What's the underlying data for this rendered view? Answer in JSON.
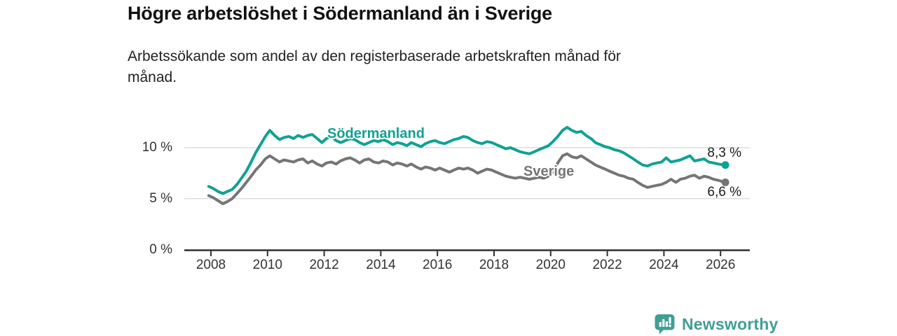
{
  "header": {
    "title": "Högre arbetslöshet i Södermanland än i Sverige",
    "subtitle_line1": "Arbetssökande som andel av den registerbaserade arbetskraften månad för",
    "subtitle_line2": "månad."
  },
  "footer": {
    "brand": "Newsworthy"
  },
  "colors": {
    "accent": "#0FA294",
    "series_gray": "#757575",
    "grid": "#d8d8d8",
    "axis": "#2f2f2f",
    "tick_text": "#333333",
    "logo": "#419E97"
  },
  "chart_data": {
    "type": "line",
    "title": "Högre arbetslöshet i Södermanland än i Sverige",
    "subtitle": "Arbetssökande som andel av den registerbaserade arbetskraften månad för månad.",
    "xlabel": "",
    "ylabel": "",
    "xlim": [
      2007.0,
      2027.2
    ],
    "ylim": [
      0,
      13
    ],
    "grid": "horizontal",
    "legend": "inline-labels",
    "x_ticks": [
      2008,
      2010,
      2012,
      2014,
      2016,
      2018,
      2020,
      2022,
      2024,
      2026
    ],
    "y_ticks": [
      {
        "value": 10,
        "label": "10 %"
      },
      {
        "value": 5,
        "label": "5 %"
      },
      {
        "value": 0,
        "label": "0 %"
      }
    ],
    "series": [
      {
        "name": "Södermanland",
        "color": "#0FA294",
        "end_label": "8,3 %",
        "end_value": 8.3,
        "points": [
          [
            2007.92,
            6.2
          ],
          [
            2008.08,
            6.0
          ],
          [
            2008.25,
            5.7
          ],
          [
            2008.42,
            5.5
          ],
          [
            2008.58,
            5.7
          ],
          [
            2008.75,
            5.9
          ],
          [
            2008.92,
            6.4
          ],
          [
            2009.08,
            7.0
          ],
          [
            2009.25,
            7.7
          ],
          [
            2009.42,
            8.6
          ],
          [
            2009.58,
            9.5
          ],
          [
            2009.75,
            10.3
          ],
          [
            2009.92,
            11.1
          ],
          [
            2010.08,
            11.7
          ],
          [
            2010.25,
            11.2
          ],
          [
            2010.42,
            10.8
          ],
          [
            2010.58,
            11.0
          ],
          [
            2010.75,
            11.1
          ],
          [
            2010.92,
            10.9
          ],
          [
            2011.08,
            11.2
          ],
          [
            2011.25,
            11.0
          ],
          [
            2011.42,
            11.2
          ],
          [
            2011.58,
            11.3
          ],
          [
            2011.75,
            10.9
          ],
          [
            2011.92,
            10.5
          ],
          [
            2012.08,
            10.9
          ],
          [
            2012.25,
            11.1
          ],
          [
            2012.42,
            10.7
          ],
          [
            2012.58,
            10.5
          ],
          [
            2012.75,
            10.7
          ],
          [
            2012.92,
            10.9
          ],
          [
            2013.08,
            10.8
          ],
          [
            2013.25,
            10.5
          ],
          [
            2013.42,
            10.3
          ],
          [
            2013.58,
            10.5
          ],
          [
            2013.75,
            10.7
          ],
          [
            2013.92,
            10.6
          ],
          [
            2014.08,
            10.8
          ],
          [
            2014.25,
            10.6
          ],
          [
            2014.42,
            10.3
          ],
          [
            2014.58,
            10.5
          ],
          [
            2014.75,
            10.4
          ],
          [
            2014.92,
            10.2
          ],
          [
            2015.08,
            10.5
          ],
          [
            2015.25,
            10.3
          ],
          [
            2015.42,
            10.1
          ],
          [
            2015.58,
            10.4
          ],
          [
            2015.75,
            10.6
          ],
          [
            2015.92,
            10.7
          ],
          [
            2016.08,
            10.5
          ],
          [
            2016.25,
            10.4
          ],
          [
            2016.42,
            10.6
          ],
          [
            2016.58,
            10.8
          ],
          [
            2016.75,
            10.9
          ],
          [
            2016.92,
            11.1
          ],
          [
            2017.08,
            11.0
          ],
          [
            2017.25,
            10.7
          ],
          [
            2017.42,
            10.5
          ],
          [
            2017.58,
            10.4
          ],
          [
            2017.75,
            10.6
          ],
          [
            2017.92,
            10.5
          ],
          [
            2018.08,
            10.3
          ],
          [
            2018.25,
            10.1
          ],
          [
            2018.42,
            9.9
          ],
          [
            2018.58,
            10.0
          ],
          [
            2018.75,
            9.8
          ],
          [
            2018.92,
            9.6
          ],
          [
            2019.08,
            9.5
          ],
          [
            2019.25,
            9.4
          ],
          [
            2019.42,
            9.6
          ],
          [
            2019.58,
            9.8
          ],
          [
            2019.75,
            10.0
          ],
          [
            2019.92,
            10.2
          ],
          [
            2020.08,
            10.6
          ],
          [
            2020.25,
            11.1
          ],
          [
            2020.42,
            11.7
          ],
          [
            2020.58,
            12.0
          ],
          [
            2020.75,
            11.7
          ],
          [
            2020.92,
            11.5
          ],
          [
            2021.08,
            11.6
          ],
          [
            2021.25,
            11.2
          ],
          [
            2021.42,
            10.9
          ],
          [
            2021.58,
            10.5
          ],
          [
            2021.75,
            10.3
          ],
          [
            2021.92,
            10.1
          ],
          [
            2022.08,
            10.0
          ],
          [
            2022.25,
            9.8
          ],
          [
            2022.42,
            9.7
          ],
          [
            2022.58,
            9.5
          ],
          [
            2022.75,
            9.2
          ],
          [
            2022.92,
            8.9
          ],
          [
            2023.08,
            8.6
          ],
          [
            2023.25,
            8.3
          ],
          [
            2023.42,
            8.2
          ],
          [
            2023.58,
            8.4
          ],
          [
            2023.75,
            8.5
          ],
          [
            2023.92,
            8.6
          ],
          [
            2024.08,
            9.0
          ],
          [
            2024.25,
            8.6
          ],
          [
            2024.42,
            8.7
          ],
          [
            2024.58,
            8.8
          ],
          [
            2024.75,
            9.0
          ],
          [
            2024.92,
            9.2
          ],
          [
            2025.08,
            8.7
          ],
          [
            2025.25,
            8.8
          ],
          [
            2025.42,
            8.9
          ],
          [
            2025.58,
            8.6
          ],
          [
            2025.75,
            8.5
          ],
          [
            2025.92,
            8.4
          ],
          [
            2026.17,
            8.3
          ]
        ]
      },
      {
        "name": "Sverige",
        "color": "#757575",
        "end_label": "6,6 %",
        "end_value": 6.6,
        "points": [
          [
            2007.92,
            5.3
          ],
          [
            2008.08,
            5.1
          ],
          [
            2008.25,
            4.8
          ],
          [
            2008.42,
            4.5
          ],
          [
            2008.58,
            4.7
          ],
          [
            2008.75,
            5.0
          ],
          [
            2008.92,
            5.5
          ],
          [
            2009.08,
            6.0
          ],
          [
            2009.25,
            6.6
          ],
          [
            2009.42,
            7.2
          ],
          [
            2009.58,
            7.8
          ],
          [
            2009.75,
            8.3
          ],
          [
            2009.92,
            8.9
          ],
          [
            2010.08,
            9.2
          ],
          [
            2010.25,
            8.9
          ],
          [
            2010.42,
            8.6
          ],
          [
            2010.58,
            8.8
          ],
          [
            2010.75,
            8.7
          ],
          [
            2010.92,
            8.6
          ],
          [
            2011.08,
            8.8
          ],
          [
            2011.25,
            8.9
          ],
          [
            2011.42,
            8.5
          ],
          [
            2011.58,
            8.7
          ],
          [
            2011.75,
            8.4
          ],
          [
            2011.92,
            8.2
          ],
          [
            2012.08,
            8.5
          ],
          [
            2012.25,
            8.6
          ],
          [
            2012.42,
            8.4
          ],
          [
            2012.58,
            8.7
          ],
          [
            2012.75,
            8.9
          ],
          [
            2012.92,
            9.0
          ],
          [
            2013.08,
            8.8
          ],
          [
            2013.25,
            8.5
          ],
          [
            2013.42,
            8.8
          ],
          [
            2013.58,
            8.9
          ],
          [
            2013.75,
            8.6
          ],
          [
            2013.92,
            8.5
          ],
          [
            2014.08,
            8.7
          ],
          [
            2014.25,
            8.6
          ],
          [
            2014.42,
            8.3
          ],
          [
            2014.58,
            8.5
          ],
          [
            2014.75,
            8.4
          ],
          [
            2014.92,
            8.2
          ],
          [
            2015.08,
            8.4
          ],
          [
            2015.25,
            8.1
          ],
          [
            2015.42,
            7.9
          ],
          [
            2015.58,
            8.1
          ],
          [
            2015.75,
            8.0
          ],
          [
            2015.92,
            7.8
          ],
          [
            2016.08,
            8.0
          ],
          [
            2016.25,
            7.8
          ],
          [
            2016.42,
            7.6
          ],
          [
            2016.58,
            7.8
          ],
          [
            2016.75,
            8.0
          ],
          [
            2016.92,
            7.9
          ],
          [
            2017.08,
            8.0
          ],
          [
            2017.25,
            7.8
          ],
          [
            2017.42,
            7.5
          ],
          [
            2017.58,
            7.7
          ],
          [
            2017.75,
            7.9
          ],
          [
            2017.92,
            7.8
          ],
          [
            2018.08,
            7.6
          ],
          [
            2018.25,
            7.4
          ],
          [
            2018.42,
            7.2
          ],
          [
            2018.58,
            7.1
          ],
          [
            2018.75,
            7.0
          ],
          [
            2018.92,
            7.1
          ],
          [
            2019.08,
            7.0
          ],
          [
            2019.25,
            6.9
          ],
          [
            2019.42,
            7.0
          ],
          [
            2019.58,
            7.1
          ],
          [
            2019.75,
            7.0
          ],
          [
            2019.92,
            7.2
          ],
          [
            2020.08,
            7.6
          ],
          [
            2020.25,
            8.5
          ],
          [
            2020.42,
            9.2
          ],
          [
            2020.58,
            9.4
          ],
          [
            2020.75,
            9.1
          ],
          [
            2020.92,
            9.0
          ],
          [
            2021.08,
            9.2
          ],
          [
            2021.25,
            8.9
          ],
          [
            2021.42,
            8.6
          ],
          [
            2021.58,
            8.3
          ],
          [
            2021.75,
            8.1
          ],
          [
            2021.92,
            7.9
          ],
          [
            2022.08,
            7.7
          ],
          [
            2022.25,
            7.5
          ],
          [
            2022.42,
            7.3
          ],
          [
            2022.58,
            7.2
          ],
          [
            2022.75,
            7.0
          ],
          [
            2022.92,
            6.9
          ],
          [
            2023.08,
            6.6
          ],
          [
            2023.25,
            6.3
          ],
          [
            2023.42,
            6.1
          ],
          [
            2023.58,
            6.2
          ],
          [
            2023.75,
            6.3
          ],
          [
            2023.92,
            6.4
          ],
          [
            2024.08,
            6.6
          ],
          [
            2024.25,
            6.9
          ],
          [
            2024.42,
            6.6
          ],
          [
            2024.58,
            6.9
          ],
          [
            2024.75,
            7.0
          ],
          [
            2024.92,
            7.2
          ],
          [
            2025.08,
            7.3
          ],
          [
            2025.25,
            7.0
          ],
          [
            2025.42,
            7.2
          ],
          [
            2025.58,
            7.1
          ],
          [
            2025.75,
            6.9
          ],
          [
            2025.92,
            6.8
          ],
          [
            2026.17,
            6.6
          ]
        ]
      }
    ]
  }
}
